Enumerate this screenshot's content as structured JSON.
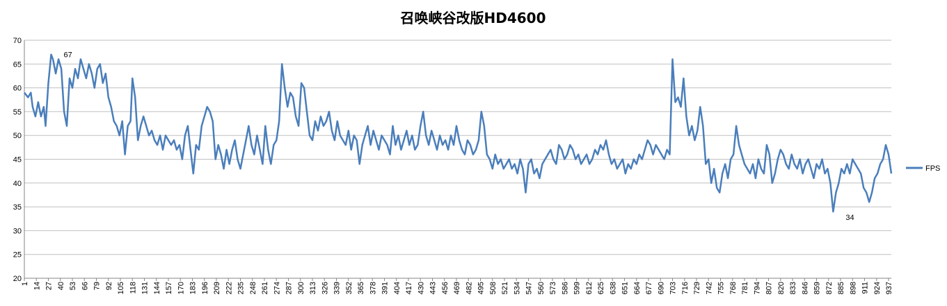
{
  "chart_data": {
    "type": "line",
    "title": "召唤峡谷改版HD4600",
    "xlabel": "",
    "ylabel": "",
    "ylim": [
      20,
      70
    ],
    "yticks": [
      20,
      25,
      30,
      35,
      40,
      45,
      50,
      55,
      60,
      65,
      70
    ],
    "xlim": [
      1,
      940
    ],
    "xticks": [
      1,
      14,
      27,
      40,
      53,
      66,
      79,
      92,
      105,
      118,
      131,
      144,
      157,
      170,
      183,
      196,
      209,
      222,
      235,
      248,
      261,
      274,
      287,
      300,
      313,
      326,
      339,
      352,
      365,
      378,
      391,
      404,
      417,
      430,
      443,
      456,
      469,
      482,
      495,
      508,
      521,
      534,
      547,
      560,
      573,
      586,
      599,
      612,
      625,
      638,
      651,
      664,
      677,
      690,
      703,
      716,
      729,
      742,
      755,
      768,
      781,
      794,
      807,
      820,
      833,
      846,
      859,
      872,
      885,
      898,
      911,
      924,
      937
    ],
    "grid": "horizontal",
    "legend_position": "right",
    "annotations": [
      {
        "label": "67",
        "x": 30,
        "y": 67
      },
      {
        "label": "34",
        "x": 877,
        "y": 34
      }
    ],
    "series": [
      {
        "name": "FPS",
        "color": "#4a7ebb",
        "points": [
          [
            1,
            59
          ],
          [
            5,
            58
          ],
          [
            8,
            59
          ],
          [
            10,
            56
          ],
          [
            13,
            54
          ],
          [
            16,
            57
          ],
          [
            19,
            54
          ],
          [
            22,
            56
          ],
          [
            24,
            52
          ],
          [
            27,
            61
          ],
          [
            30,
            67
          ],
          [
            32,
            66
          ],
          [
            35,
            63
          ],
          [
            38,
            66
          ],
          [
            41,
            64
          ],
          [
            44,
            55
          ],
          [
            47,
            52
          ],
          [
            50,
            62
          ],
          [
            53,
            60
          ],
          [
            56,
            64
          ],
          [
            59,
            62
          ],
          [
            62,
            66
          ],
          [
            65,
            64
          ],
          [
            68,
            62
          ],
          [
            71,
            65
          ],
          [
            74,
            63
          ],
          [
            77,
            60
          ],
          [
            80,
            64
          ],
          [
            83,
            65
          ],
          [
            86,
            61
          ],
          [
            89,
            63
          ],
          [
            92,
            58
          ],
          [
            95,
            56
          ],
          [
            98,
            53
          ],
          [
            101,
            52
          ],
          [
            104,
            50
          ],
          [
            107,
            53
          ],
          [
            110,
            46
          ],
          [
            113,
            52
          ],
          [
            116,
            53
          ],
          [
            118,
            62
          ],
          [
            121,
            58
          ],
          [
            124,
            49
          ],
          [
            127,
            52
          ],
          [
            130,
            54
          ],
          [
            133,
            52
          ],
          [
            136,
            50
          ],
          [
            139,
            51
          ],
          [
            142,
            49
          ],
          [
            145,
            48
          ],
          [
            148,
            50
          ],
          [
            151,
            47
          ],
          [
            154,
            50
          ],
          [
            157,
            49
          ],
          [
            160,
            48
          ],
          [
            163,
            49
          ],
          [
            166,
            47
          ],
          [
            169,
            48
          ],
          [
            172,
            45
          ],
          [
            175,
            50
          ],
          [
            178,
            52
          ],
          [
            181,
            47
          ],
          [
            184,
            42
          ],
          [
            187,
            48
          ],
          [
            190,
            47
          ],
          [
            193,
            52
          ],
          [
            196,
            54
          ],
          [
            199,
            56
          ],
          [
            202,
            55
          ],
          [
            205,
            53
          ],
          [
            208,
            45
          ],
          [
            211,
            48
          ],
          [
            214,
            46
          ],
          [
            217,
            43
          ],
          [
            220,
            47
          ],
          [
            223,
            44
          ],
          [
            226,
            47
          ],
          [
            229,
            49
          ],
          [
            232,
            45
          ],
          [
            235,
            43
          ],
          [
            238,
            46
          ],
          [
            241,
            49
          ],
          [
            244,
            52
          ],
          [
            247,
            48
          ],
          [
            250,
            46
          ],
          [
            253,
            50
          ],
          [
            256,
            47
          ],
          [
            259,
            44
          ],
          [
            262,
            52
          ],
          [
            265,
            47
          ],
          [
            268,
            44
          ],
          [
            271,
            48
          ],
          [
            274,
            49
          ],
          [
            277,
            53
          ],
          [
            280,
            65
          ],
          [
            283,
            60
          ],
          [
            286,
            56
          ],
          [
            289,
            59
          ],
          [
            292,
            58
          ],
          [
            295,
            54
          ],
          [
            298,
            52
          ],
          [
            301,
            61
          ],
          [
            304,
            60
          ],
          [
            307,
            55
          ],
          [
            310,
            50
          ],
          [
            313,
            49
          ],
          [
            316,
            53
          ],
          [
            319,
            51
          ],
          [
            322,
            54
          ],
          [
            325,
            52
          ],
          [
            328,
            53
          ],
          [
            331,
            55
          ],
          [
            334,
            51
          ],
          [
            337,
            49
          ],
          [
            340,
            53
          ],
          [
            343,
            50
          ],
          [
            346,
            49
          ],
          [
            349,
            48
          ],
          [
            352,
            51
          ],
          [
            355,
            47
          ],
          [
            358,
            50
          ],
          [
            361,
            49
          ],
          [
            364,
            44
          ],
          [
            367,
            48
          ],
          [
            370,
            50
          ],
          [
            373,
            52
          ],
          [
            376,
            48
          ],
          [
            379,
            51
          ],
          [
            382,
            49
          ],
          [
            385,
            47
          ],
          [
            388,
            50
          ],
          [
            391,
            49
          ],
          [
            394,
            48
          ],
          [
            397,
            46
          ],
          [
            400,
            52
          ],
          [
            403,
            48
          ],
          [
            406,
            50
          ],
          [
            409,
            47
          ],
          [
            412,
            49
          ],
          [
            415,
            51
          ],
          [
            418,
            48
          ],
          [
            421,
            50
          ],
          [
            424,
            47
          ],
          [
            427,
            48
          ],
          [
            430,
            52
          ],
          [
            433,
            55
          ],
          [
            436,
            50
          ],
          [
            439,
            48
          ],
          [
            442,
            51
          ],
          [
            445,
            49
          ],
          [
            448,
            47
          ],
          [
            451,
            50
          ],
          [
            454,
            48
          ],
          [
            457,
            49
          ],
          [
            460,
            47
          ],
          [
            463,
            50
          ],
          [
            466,
            48
          ],
          [
            469,
            52
          ],
          [
            472,
            49
          ],
          [
            475,
            47
          ],
          [
            478,
            46
          ],
          [
            481,
            49
          ],
          [
            484,
            48
          ],
          [
            487,
            46
          ],
          [
            490,
            47
          ],
          [
            493,
            49
          ],
          [
            496,
            55
          ],
          [
            499,
            52
          ],
          [
            502,
            46
          ],
          [
            505,
            45
          ],
          [
            508,
            43
          ],
          [
            511,
            46
          ],
          [
            514,
            44
          ],
          [
            517,
            45
          ],
          [
            520,
            43
          ],
          [
            523,
            44
          ],
          [
            526,
            45
          ],
          [
            529,
            43
          ],
          [
            532,
            44
          ],
          [
            535,
            42
          ],
          [
            538,
            45
          ],
          [
            541,
            43
          ],
          [
            544,
            38
          ],
          [
            547,
            44
          ],
          [
            550,
            45
          ],
          [
            553,
            42
          ],
          [
            556,
            43
          ],
          [
            559,
            41
          ],
          [
            562,
            44
          ],
          [
            565,
            45
          ],
          [
            568,
            46
          ],
          [
            571,
            47
          ],
          [
            574,
            45
          ],
          [
            577,
            44
          ],
          [
            580,
            48
          ],
          [
            583,
            47
          ],
          [
            586,
            45
          ],
          [
            589,
            46
          ],
          [
            592,
            48
          ],
          [
            595,
            47
          ],
          [
            598,
            45
          ],
          [
            601,
            46
          ],
          [
            604,
            44
          ],
          [
            607,
            45
          ],
          [
            610,
            46
          ],
          [
            613,
            44
          ],
          [
            616,
            45
          ],
          [
            619,
            47
          ],
          [
            622,
            46
          ],
          [
            625,
            48
          ],
          [
            628,
            47
          ],
          [
            631,
            49
          ],
          [
            634,
            46
          ],
          [
            637,
            44
          ],
          [
            640,
            45
          ],
          [
            643,
            43
          ],
          [
            646,
            44
          ],
          [
            649,
            45
          ],
          [
            652,
            42
          ],
          [
            655,
            44
          ],
          [
            658,
            43
          ],
          [
            661,
            45
          ],
          [
            664,
            44
          ],
          [
            667,
            46
          ],
          [
            670,
            45
          ],
          [
            673,
            47
          ],
          [
            676,
            49
          ],
          [
            679,
            48
          ],
          [
            682,
            46
          ],
          [
            685,
            48
          ],
          [
            688,
            47
          ],
          [
            691,
            46
          ],
          [
            694,
            45
          ],
          [
            697,
            47
          ],
          [
            700,
            46
          ],
          [
            703,
            66
          ],
          [
            706,
            57
          ],
          [
            709,
            58
          ],
          [
            712,
            56
          ],
          [
            715,
            62
          ],
          [
            718,
            54
          ],
          [
            721,
            50
          ],
          [
            724,
            52
          ],
          [
            727,
            49
          ],
          [
            730,
            51
          ],
          [
            733,
            56
          ],
          [
            736,
            52
          ],
          [
            739,
            44
          ],
          [
            742,
            45
          ],
          [
            745,
            40
          ],
          [
            748,
            43
          ],
          [
            751,
            39
          ],
          [
            754,
            38
          ],
          [
            757,
            42
          ],
          [
            760,
            44
          ],
          [
            763,
            41
          ],
          [
            766,
            45
          ],
          [
            769,
            46
          ],
          [
            772,
            52
          ],
          [
            775,
            48
          ],
          [
            778,
            46
          ],
          [
            781,
            44
          ],
          [
            784,
            43
          ],
          [
            787,
            42
          ],
          [
            790,
            44
          ],
          [
            793,
            41
          ],
          [
            796,
            45
          ],
          [
            799,
            43
          ],
          [
            802,
            42
          ],
          [
            805,
            48
          ],
          [
            808,
            46
          ],
          [
            811,
            40
          ],
          [
            814,
            42
          ],
          [
            817,
            45
          ],
          [
            820,
            47
          ],
          [
            823,
            46
          ],
          [
            826,
            44
          ],
          [
            829,
            43
          ],
          [
            832,
            46
          ],
          [
            835,
            44
          ],
          [
            838,
            43
          ],
          [
            841,
            45
          ],
          [
            844,
            42
          ],
          [
            847,
            44
          ],
          [
            850,
            45
          ],
          [
            853,
            43
          ],
          [
            856,
            41
          ],
          [
            859,
            44
          ],
          [
            862,
            43
          ],
          [
            865,
            45
          ],
          [
            868,
            42
          ],
          [
            871,
            43
          ],
          [
            874,
            40
          ],
          [
            877,
            34
          ],
          [
            880,
            38
          ],
          [
            883,
            40
          ],
          [
            886,
            43
          ],
          [
            889,
            42
          ],
          [
            892,
            44
          ],
          [
            895,
            42
          ],
          [
            898,
            45
          ],
          [
            901,
            44
          ],
          [
            904,
            43
          ],
          [
            907,
            42
          ],
          [
            910,
            39
          ],
          [
            913,
            38
          ],
          [
            916,
            36
          ],
          [
            919,
            38
          ],
          [
            922,
            41
          ],
          [
            925,
            42
          ],
          [
            928,
            44
          ],
          [
            931,
            45
          ],
          [
            934,
            48
          ],
          [
            937,
            46
          ],
          [
            940,
            42
          ]
        ]
      }
    ]
  }
}
